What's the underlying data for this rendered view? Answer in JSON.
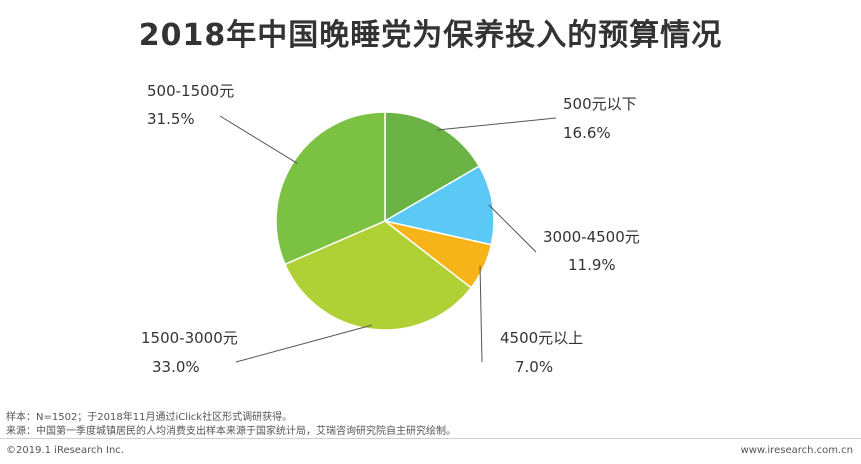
{
  "title": "2018年中国晚睡党为保养投入的预算情况",
  "chart_data": {
    "type": "pie",
    "title": "2018年中国晚睡党为保养投入的预算情况",
    "slices": [
      {
        "name": "500元以下",
        "value": 16.6,
        "label": "16.6%",
        "color": "#6ab344"
      },
      {
        "name": "3000-4500元",
        "value": 11.9,
        "label": "11.9%",
        "color": "#5bc8f5"
      },
      {
        "name": "4500元以上",
        "value": 7.0,
        "label": "7.0%",
        "color": "#f7b418"
      },
      {
        "name": "1500-3000元",
        "value": 33.0,
        "label": "33.0%",
        "color": "#afd136"
      },
      {
        "name": "500-1500元",
        "value": 31.5,
        "label": "31.5%",
        "color": "#7cc242"
      }
    ]
  },
  "notes": {
    "sample": "样本：N=1502；于2018年11月通过iClick社区形式调研获得。",
    "source": "来源：中国第一季度城镇居民的人均消费支出样本来源于国家统计局，艾瑞咨询研究院自主研究绘制。"
  },
  "footer": {
    "copyright": "©2019.1 iResearch Inc.",
    "website": "www.iresearch.com.cn"
  }
}
